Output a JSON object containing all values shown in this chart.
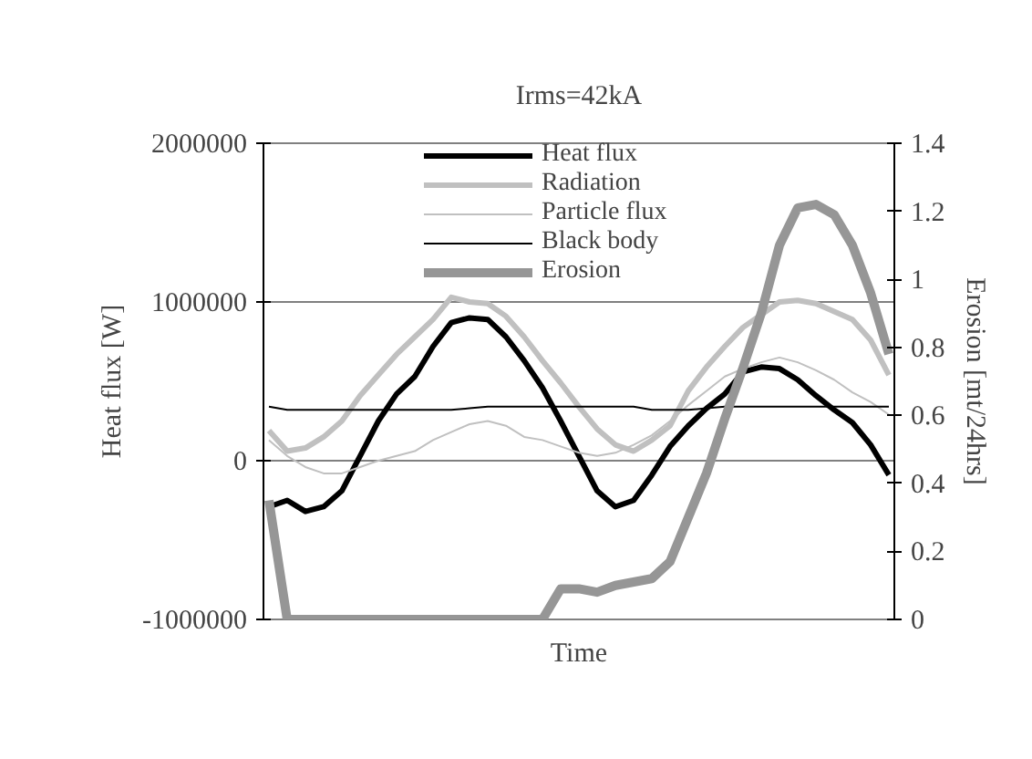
{
  "chart_data": {
    "type": "line",
    "title": "Irms=42kA",
    "xlabel": "Time",
    "ylabel": "Heat flux [W]",
    "y2label": "Erosion [mt/24hrs]",
    "categories": [
      null,
      null,
      null,
      null,
      null,
      null,
      null,
      null,
      null,
      null,
      null,
      null,
      null,
      null,
      null,
      null,
      null,
      null,
      null,
      null,
      null,
      null,
      null,
      null,
      null,
      null,
      null,
      null,
      null,
      null,
      null,
      null,
      null,
      null,
      null
    ],
    "series": [
      {
        "name": "Heat flux",
        "color": "#000000",
        "values": [
          -290000,
          -250000,
          -320000,
          -290000,
          -190000,
          30000,
          250000,
          420000,
          530000,
          720000,
          870000,
          900000,
          890000,
          780000,
          630000,
          460000,
          250000,
          30000,
          -190000,
          -290000,
          -250000,
          -90000,
          90000,
          220000,
          330000,
          420000,
          560000,
          590000,
          580000,
          510000,
          410000,
          320000,
          240000,
          100000,
          -90000
        ]
      },
      {
        "name": "Radiation",
        "color": "#c0c0c0",
        "values": [
          190000,
          60000,
          80000,
          150000,
          250000,
          410000,
          540000,
          670000,
          780000,
          890000,
          1030000,
          1000000,
          990000,
          910000,
          780000,
          630000,
          490000,
          340000,
          200000,
          100000,
          60000,
          130000,
          220000,
          440000,
          590000,
          720000,
          840000,
          920000,
          1000000,
          1010000,
          990000,
          940000,
          890000,
          760000,
          540000
        ]
      },
      {
        "name": "Particle flux",
        "color": "#c0c0c0",
        "values": [
          130000,
          30000,
          -40000,
          -80000,
          -80000,
          -40000,
          0,
          30000,
          60000,
          130000,
          180000,
          230000,
          250000,
          220000,
          150000,
          130000,
          90000,
          50000,
          30000,
          50000,
          100000,
          160000,
          250000,
          350000,
          440000,
          530000,
          580000,
          620000,
          650000,
          620000,
          570000,
          510000,
          430000,
          370000,
          290000
        ]
      },
      {
        "name": "Black body",
        "color": "#000000",
        "values": [
          340000,
          320000,
          320000,
          320000,
          320000,
          320000,
          320000,
          320000,
          320000,
          320000,
          320000,
          330000,
          340000,
          340000,
          340000,
          340000,
          340000,
          340000,
          340000,
          340000,
          340000,
          320000,
          320000,
          320000,
          330000,
          340000,
          340000,
          340000,
          340000,
          340000,
          340000,
          340000,
          340000,
          340000,
          340000
        ]
      },
      {
        "name": "Erosion",
        "color": "#969696",
        "axis": "y2",
        "values": [
          0.35,
          0,
          0,
          0,
          0,
          0,
          0,
          0,
          0,
          0,
          0,
          0,
          0,
          0,
          0,
          0,
          0.09,
          0.09,
          0.08,
          0.1,
          0.11,
          0.12,
          0.17,
          0.3,
          0.43,
          0.59,
          0.74,
          0.9,
          1.1,
          1.21,
          1.22,
          1.19,
          1.1,
          0.96,
          0.78
        ]
      }
    ],
    "ylim": [
      -1000000,
      2000000
    ],
    "yticks": [
      -1000000,
      0,
      1000000,
      2000000
    ],
    "y2lim": [
      0,
      1.4
    ],
    "y2ticks": [
      0,
      0.2,
      0.4,
      0.6,
      0.8,
      1,
      1.2,
      1.4
    ],
    "grid": "y",
    "legend": "top",
    "tick_labels": "y",
    "marker": "none",
    "line_style": "solid"
  }
}
